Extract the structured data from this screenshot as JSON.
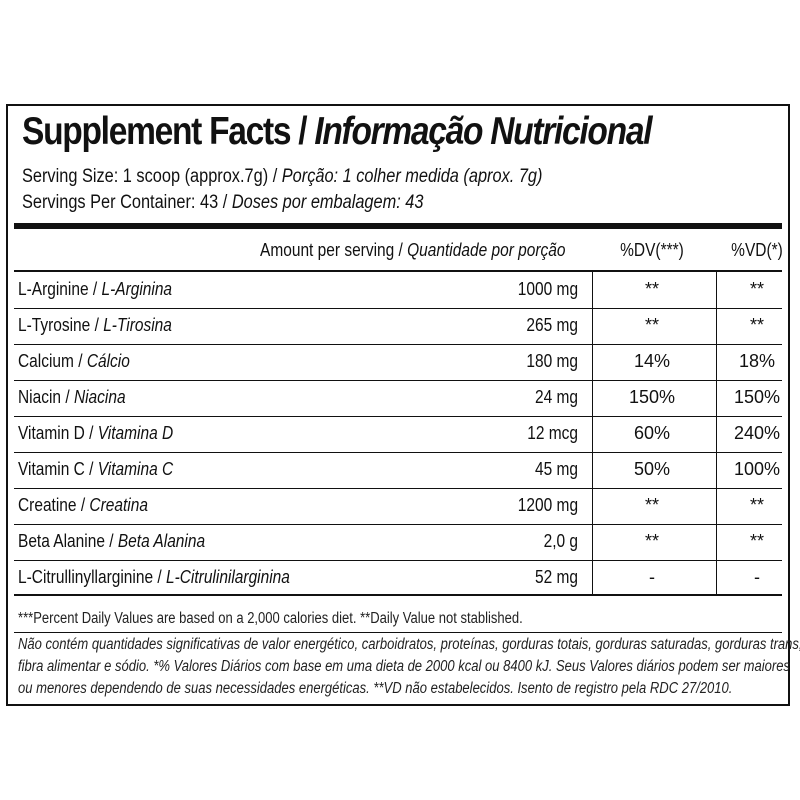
{
  "title": {
    "en": "Supplement Facts",
    "sep": " / ",
    "pt": "Informação Nutricional"
  },
  "serving": {
    "size_en": "Serving Size: 1 scoop (approx.7g)",
    "size_sep": " / ",
    "size_pt": "Porção: 1 colher medida (aprox. 7g)",
    "per_container_en": "Servings Per Container: 43",
    "per_container_sep": " / ",
    "per_container_pt": "Doses por embalagem: 43"
  },
  "header": {
    "amount_en": "Amount per serving",
    "amount_sep": " / ",
    "amount_pt": "Quantidade por porção",
    "dv": "%DV(***)",
    "vd": "%VD(*)"
  },
  "rows": [
    {
      "en": "L-Arginine",
      "pt": "L-Arginina",
      "amount": "1000 mg",
      "dv": "**",
      "vd": "**"
    },
    {
      "en": "L-Tyrosine",
      "pt": "L-Tirosina",
      "amount": "265 mg",
      "dv": "**",
      "vd": "**"
    },
    {
      "en": "Calcium",
      "pt": "Cálcio",
      "amount": "180 mg",
      "dv": "14%",
      "vd": "18%"
    },
    {
      "en": "Niacin",
      "pt": "Niacina",
      "amount": "24 mg",
      "dv": "150%",
      "vd": "150%"
    },
    {
      "en": "Vitamin D",
      "pt": "Vitamina D",
      "amount": "12 mcg",
      "dv": "60%",
      "vd": "240%"
    },
    {
      "en": "Vitamin C",
      "pt": "Vitamina C",
      "amount": "45 mg",
      "dv": "50%",
      "vd": "100%"
    },
    {
      "en": "Creatine",
      "pt": "Creatina",
      "amount": "1200 mg",
      "dv": "**",
      "vd": "**"
    },
    {
      "en": "Beta Alanine",
      "pt": "Beta Alanina",
      "amount": "2,0 g",
      "dv": "**",
      "vd": "**"
    },
    {
      "en": "L-Citrullinyllarginine",
      "pt": "L-Citrulinilarginina",
      "amount": "52 mg",
      "dv": "-",
      "vd": "-"
    }
  ],
  "row_sep": " / ",
  "footnotes": {
    "en": "***Percent Daily Values are based on a 2,000 calories diet. **Daily Value not stablished.",
    "pt_line1": "Não contém quantidades significativas de valor energético, carboidratos, proteínas, gorduras totais, gorduras saturadas, gorduras trans,",
    "pt_line2": "fibra alimentar e sódio. *% Valores Diários com base em uma dieta de 2000 kcal ou 8400 kJ. Seus Valores diários podem ser maiores",
    "pt_line3": "ou menores dependendo de suas necessidades energéticas. **VD não estabelecidos. Isento de registro pela RDC 27/2010."
  }
}
